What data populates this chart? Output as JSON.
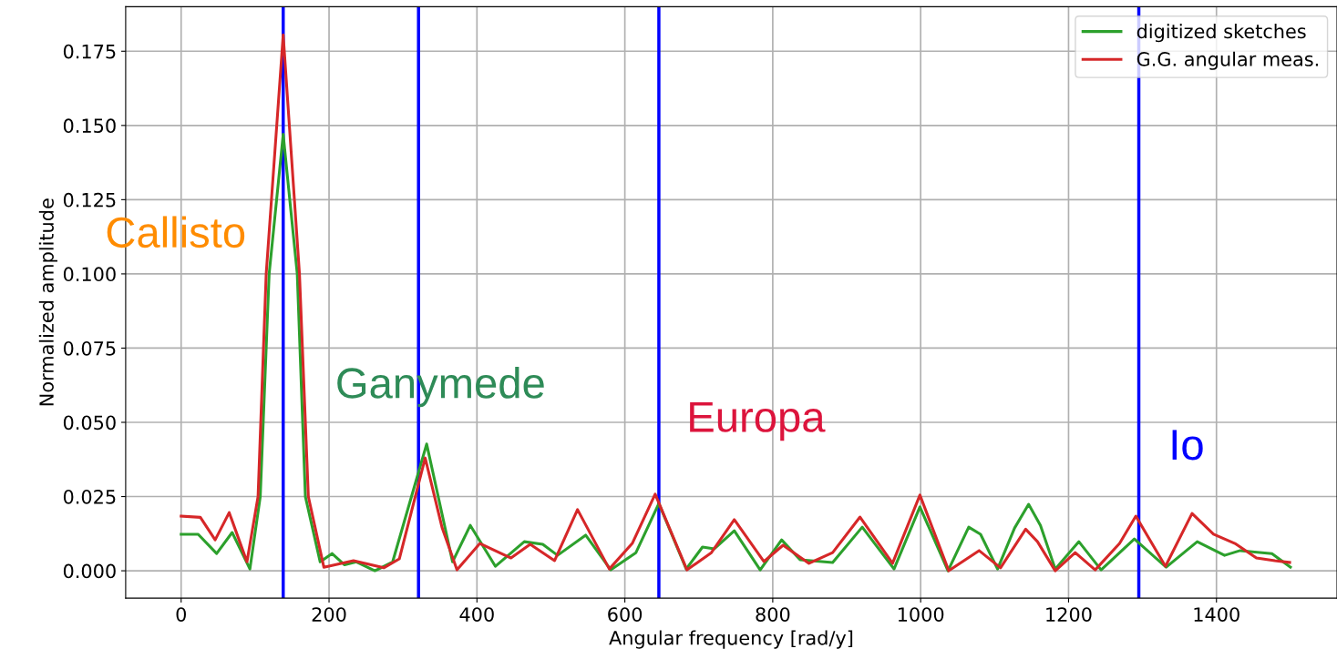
{
  "chart_data": {
    "type": "line",
    "xlabel": "Angular frequency [rad/y]",
    "ylabel": "Normalized amplitude",
    "xlim": [
      -75,
      1563
    ],
    "ylim": [
      -0.0092,
      0.19
    ],
    "xticks": [
      0,
      200,
      400,
      600,
      800,
      1000,
      1200,
      1400
    ],
    "yticks": [
      {
        "value": 0,
        "label": "0.000"
      },
      {
        "value": 0.025,
        "label": "0.025"
      },
      {
        "value": 0.05,
        "label": "0.050"
      },
      {
        "value": 0.075,
        "label": "0.075"
      },
      {
        "value": 0.1,
        "label": "0.100"
      },
      {
        "value": 0.125,
        "label": "0.125"
      },
      {
        "value": 0.15,
        "label": "0.150"
      },
      {
        "value": 0.175,
        "label": "0.175"
      }
    ],
    "grid": true,
    "legend": "top right",
    "marker": "none",
    "line_style": "solid",
    "series": [
      {
        "name": "digitized sketches",
        "color": "#2ca02c",
        "x": [
          0,
          23,
          48,
          69,
          93,
          107,
          119,
          138,
          157,
          168,
          188,
          204,
          221,
          237,
          262,
          286,
          332,
          367,
          391,
          425,
          464,
          489,
          509,
          547,
          581,
          615,
          646,
          683,
          705,
          721,
          748,
          783,
          812,
          837,
          881,
          921,
          964,
          999,
          1037,
          1065,
          1081,
          1104,
          1127,
          1146,
          1162,
          1182,
          1214,
          1244,
          1289,
          1332,
          1374,
          1411,
          1432,
          1475,
          1500
        ],
        "values": [
          0.0123,
          0.0123,
          0.0058,
          0.0129,
          0.0006,
          0.025,
          0.1,
          0.147,
          0.1,
          0.025,
          0.003,
          0.0058,
          0.002,
          0.003,
          0,
          0.003,
          0.0427,
          0.003,
          0.0153,
          0.0015,
          0.0098,
          0.0089,
          0.0052,
          0.012,
          0.0003,
          0.0061,
          0.0227,
          0.0006,
          0.008,
          0.0074,
          0.0135,
          0.0003,
          0.0104,
          0.0037,
          0.0028,
          0.0147,
          0.0006,
          0.0215,
          0,
          0.0147,
          0.0123,
          0.0006,
          0.0144,
          0.0224,
          0.0153,
          0.0006,
          0.0098,
          0.0003,
          0.0107,
          0.0012,
          0.0098,
          0.0052,
          0.0068,
          0.0058,
          0.0012
        ]
      },
      {
        "name": "G.G. angular meas.",
        "color": "#d62728",
        "x": [
          0,
          26,
          46,
          65,
          89,
          104,
          115,
          138,
          160,
          172,
          193,
          233,
          274,
          295,
          330,
          353,
          373,
          404,
          446,
          472,
          505,
          536,
          579,
          610,
          641,
          684,
          717,
          748,
          788,
          814,
          849,
          881,
          918,
          962,
          999,
          1038,
          1079,
          1108,
          1142,
          1158,
          1182,
          1209,
          1236,
          1269,
          1291,
          1331,
          1367,
          1396,
          1425,
          1454,
          1479,
          1499
        ],
        "values": [
          0.0184,
          0.018,
          0.0104,
          0.0196,
          0.003,
          0.025,
          0.1,
          0.1805,
          0.1,
          0.025,
          0.0012,
          0.0034,
          0.001,
          0.004,
          0.038,
          0.0144,
          0.0003,
          0.0092,
          0.0043,
          0.0089,
          0.0034,
          0.0206,
          0.0006,
          0.0092,
          0.0258,
          0.0003,
          0.0061,
          0.0172,
          0.0031,
          0.0086,
          0.0025,
          0.0061,
          0.0181,
          0.0025,
          0.0255,
          0,
          0.0068,
          0.001,
          0.014,
          0.0098,
          0,
          0.0061,
          0.0003,
          0.0092,
          0.0184,
          0.0015,
          0.0193,
          0.0123,
          0.0092,
          0.0043,
          0.0034,
          0.0028
        ]
      }
    ],
    "ref_lines": [
      {
        "axis": "x",
        "value": 138,
        "color": "#0000ff"
      },
      {
        "axis": "x",
        "value": 321,
        "color": "#0000ff"
      },
      {
        "axis": "x",
        "value": 646,
        "color": "#0000ff"
      },
      {
        "axis": "x",
        "value": 1295,
        "color": "#0000ff"
      }
    ],
    "annotations": [
      "Callisto",
      "Ganymede",
      "Europa",
      "Io"
    ]
  }
}
